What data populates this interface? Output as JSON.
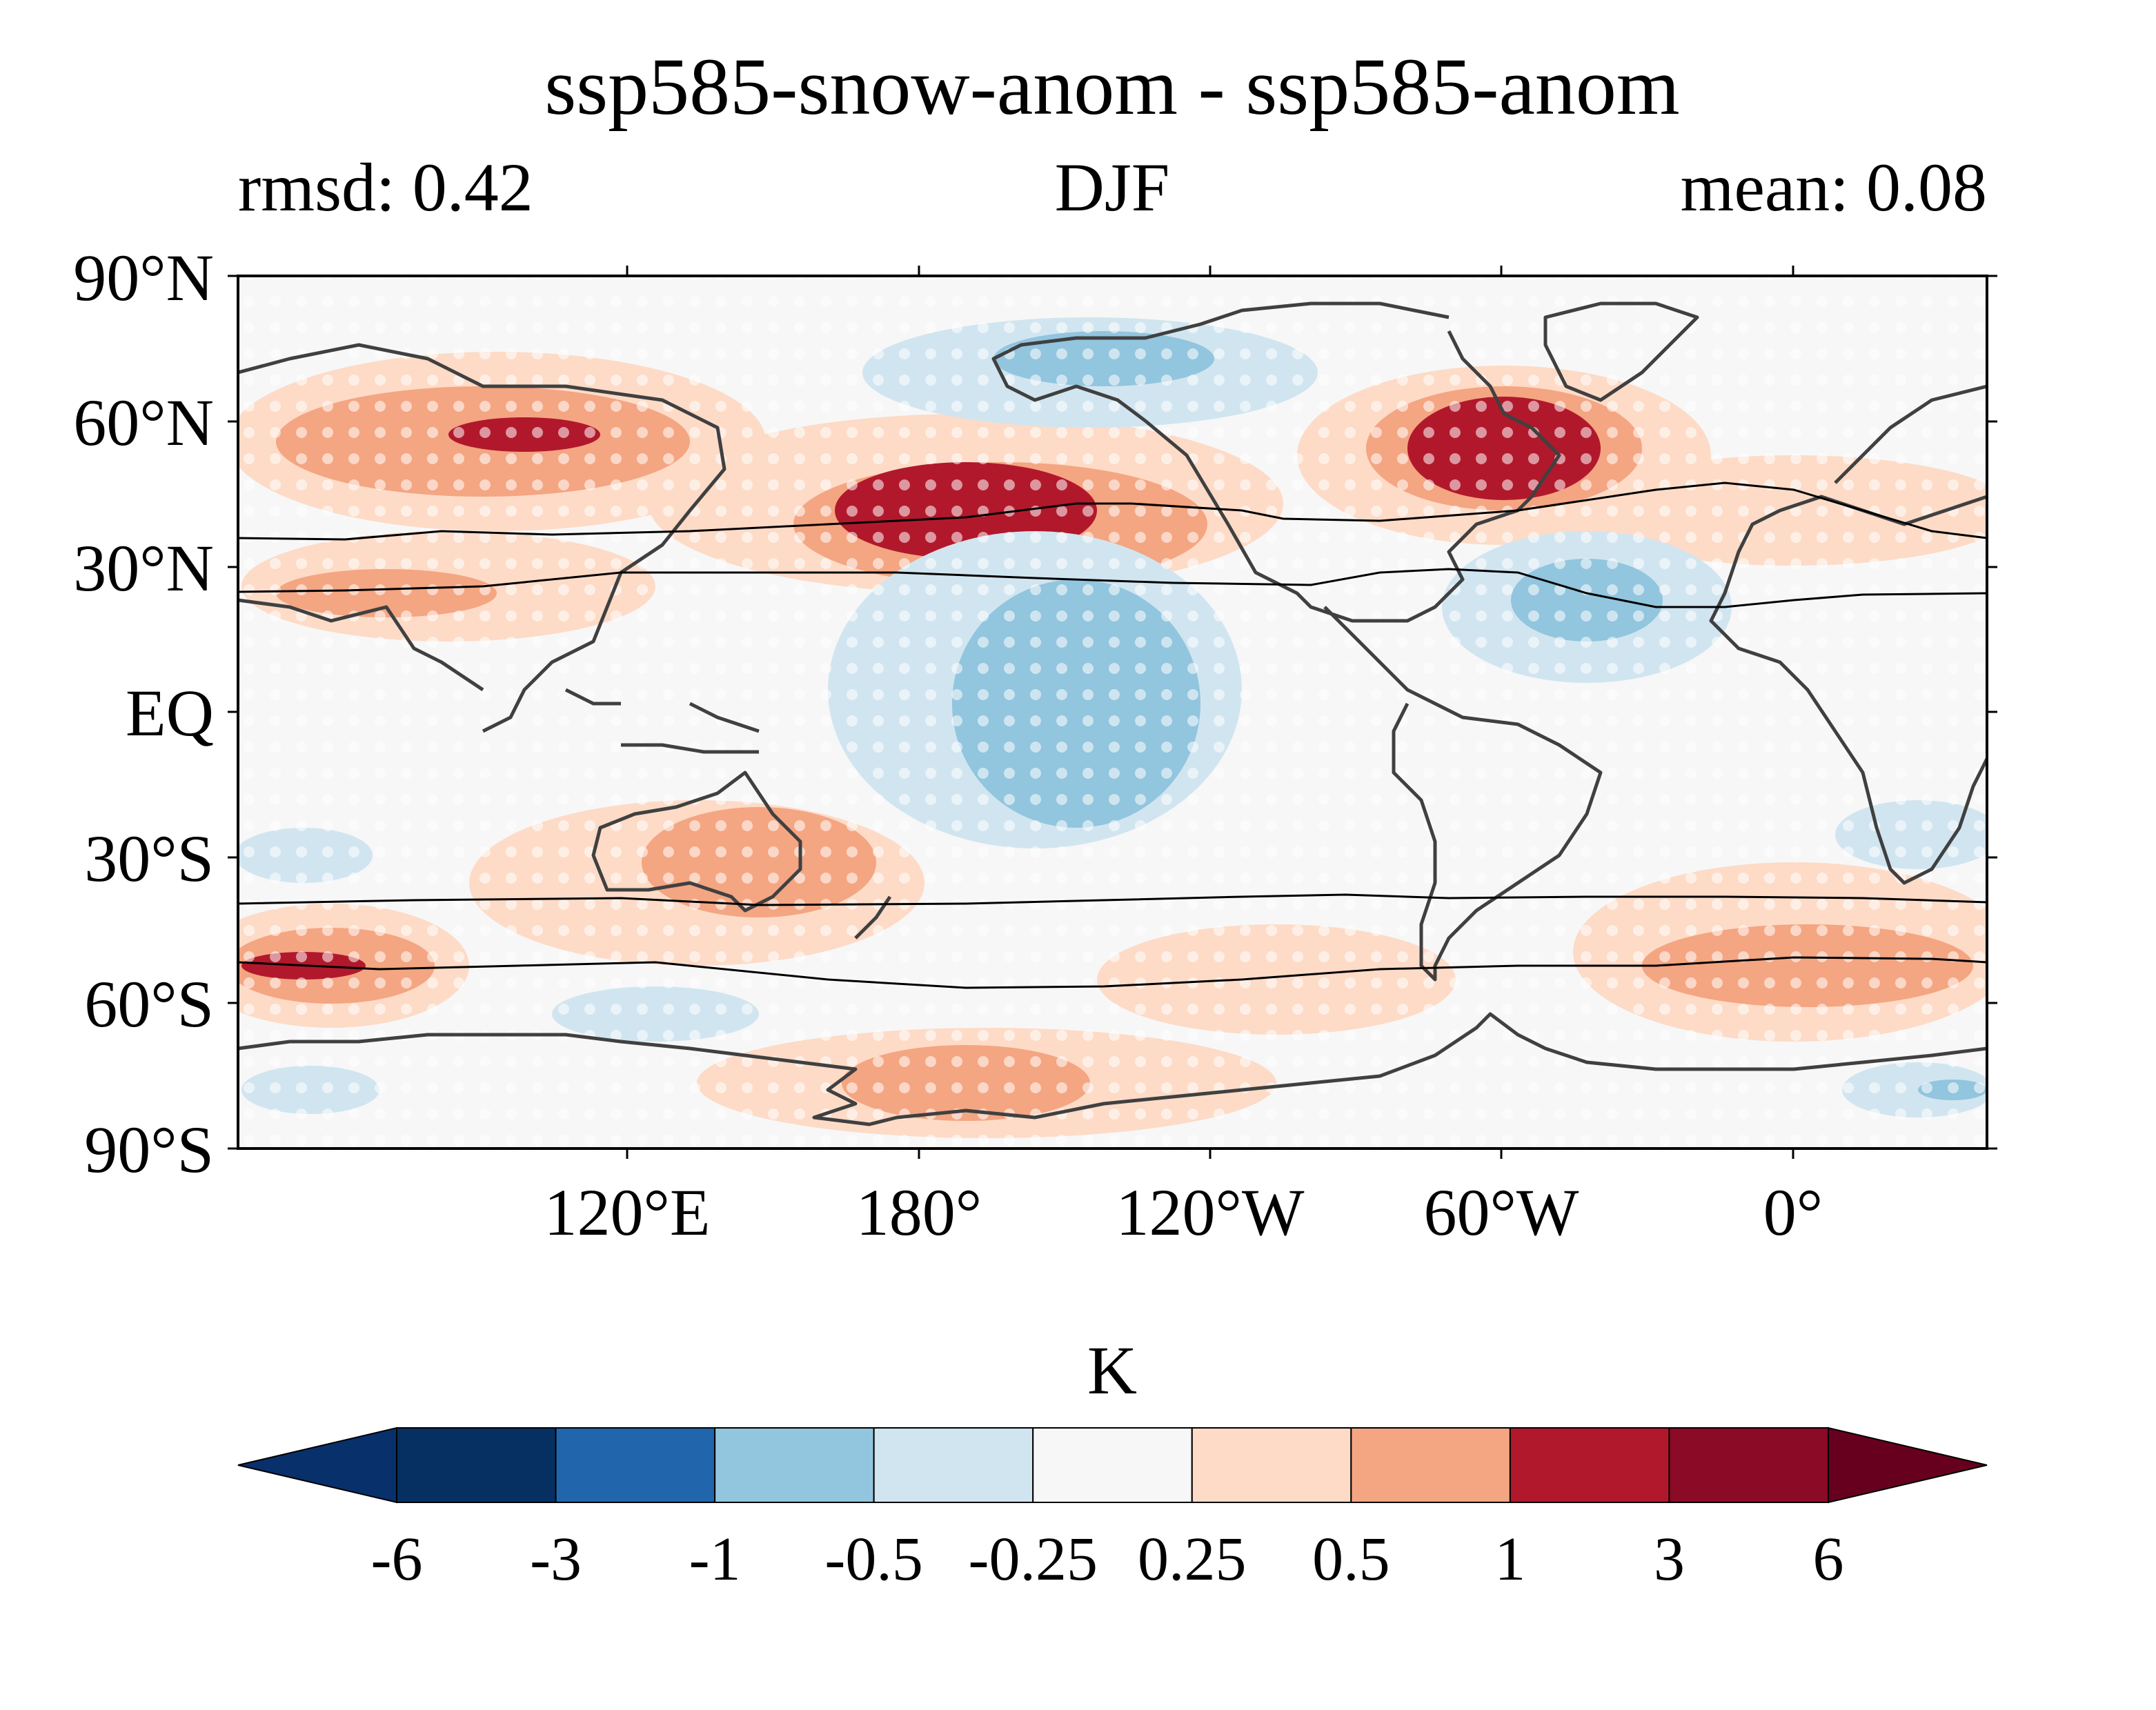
{
  "figure": {
    "title": "ssp585-snow-anom - ssp585-anom",
    "left_subtitle": "rmsd: 0.42",
    "center_subtitle": "DJF",
    "right_subtitle": "mean: 0.08"
  },
  "map": {
    "lat_labels": [
      "90°N",
      "60°N",
      "30°N",
      "EQ",
      "30°S",
      "60°S",
      "90°S"
    ],
    "lon_labels": [
      "120°E",
      "180°",
      "120°W",
      "60°W",
      "0°"
    ],
    "stippling": "white dots mark significant regions",
    "contour_lines": "black zonal jet position lines",
    "anomaly_regions": [
      {
        "name": "north-pacific-warm",
        "category": 4
      },
      {
        "name": "northeast-canada-warm",
        "category": 4
      },
      {
        "name": "siberia-warm",
        "category": 4
      },
      {
        "name": "tropical-pacific-cool",
        "category": 2
      },
      {
        "name": "north-atlantic-cool",
        "category": 2
      },
      {
        "name": "australia-warm",
        "category": 3
      },
      {
        "name": "southern-ocean-warm",
        "category": 3
      }
    ]
  },
  "colorbar": {
    "unit_label": "K",
    "tick_labels": [
      "-6",
      "-3",
      "-1",
      "-0.5",
      "-0.25",
      "0.25",
      "0.5",
      "1",
      "3",
      "6"
    ],
    "colors": [
      "#08306b",
      "#053061",
      "#2166ac",
      "#92c5de",
      "#d1e5f0",
      "#f7f7f7",
      "#fddbc7",
      "#f4a582",
      "#b2182b",
      "#8b0a26",
      "#67001f"
    ]
  }
}
